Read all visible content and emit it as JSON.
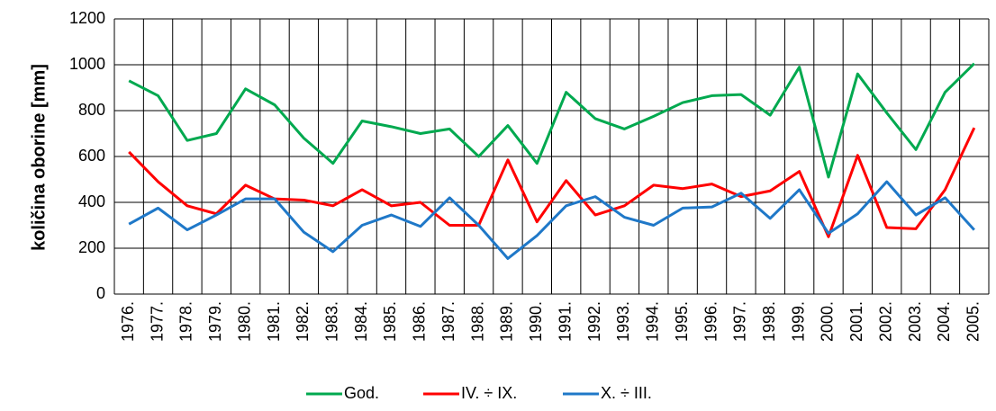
{
  "chart_data": {
    "type": "line",
    "y_label": "količina oborine [mm]",
    "categories": [
      "1976.",
      "1977.",
      "1978.",
      "1979.",
      "1980.",
      "1981.",
      "1982.",
      "1983.",
      "1984.",
      "1985.",
      "1986.",
      "1987.",
      "1988.",
      "1989.",
      "1990.",
      "1991.",
      "1992.",
      "1993.",
      "1994.",
      "1995.",
      "1996.",
      "1997.",
      "1998.",
      "1999.",
      "2000.",
      "2001.",
      "2002.",
      "2003.",
      "2004.",
      "2005."
    ],
    "series": [
      {
        "name": "God.",
        "color": "#00a94f",
        "values": [
          930,
          865,
          670,
          700,
          895,
          825,
          680,
          570,
          755,
          730,
          700,
          720,
          600,
          735,
          570,
          880,
          765,
          720,
          775,
          835,
          865,
          870,
          780,
          990,
          510,
          960,
          790,
          630,
          880,
          1005
        ]
      },
      {
        "name": "IV. ÷ IX.",
        "color": "#ff0000",
        "values": [
          620,
          490,
          385,
          350,
          475,
          415,
          410,
          385,
          455,
          385,
          400,
          300,
          300,
          585,
          315,
          495,
          345,
          385,
          475,
          460,
          480,
          425,
          450,
          535,
          250,
          605,
          290,
          285,
          455,
          725
        ]
      },
      {
        "name": "X. ÷ III.",
        "color": "#1f78c8",
        "values": [
          305,
          375,
          280,
          345,
          415,
          415,
          270,
          185,
          300,
          345,
          295,
          420,
          300,
          155,
          255,
          385,
          425,
          335,
          300,
          375,
          380,
          440,
          330,
          455,
          265,
          350,
          490,
          345,
          420,
          280
        ]
      }
    ],
    "ylim": [
      0,
      1200
    ],
    "yticks": [
      0,
      200,
      400,
      600,
      800,
      1000,
      1200
    ],
    "grid": true,
    "legend": "bottom"
  }
}
